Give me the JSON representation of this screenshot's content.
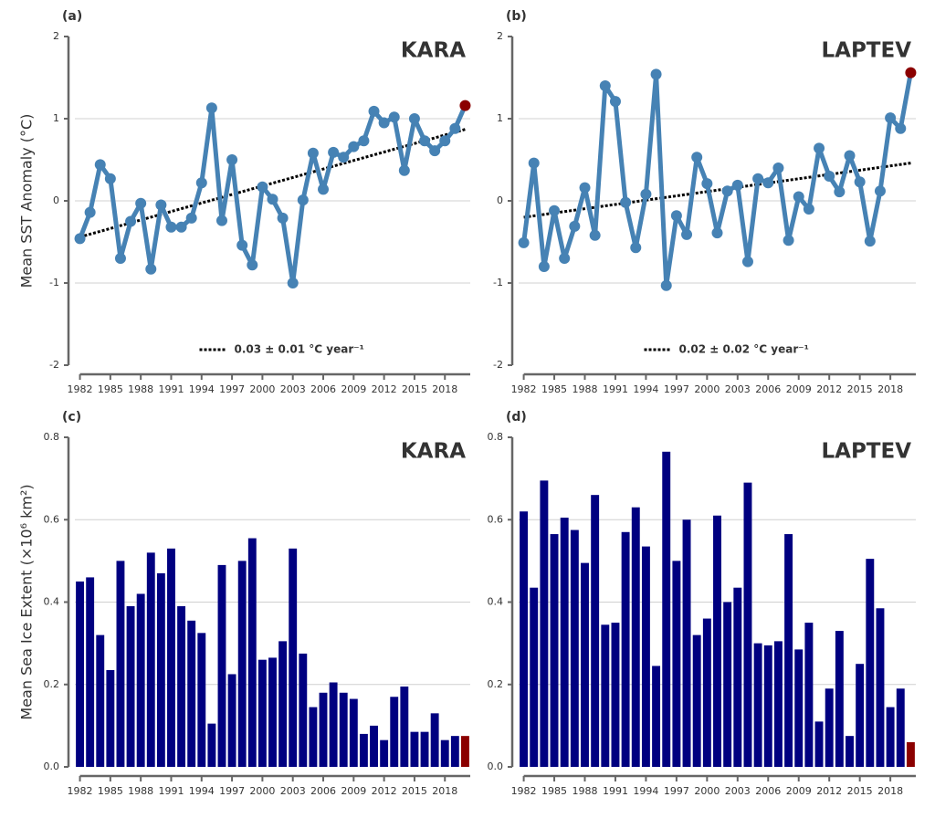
{
  "chart_data": [
    {
      "type": "line",
      "panel_label": "(a)",
      "title": "KARA",
      "y_label": "Mean SST Anomaly (°C)",
      "x": [
        1982,
        1983,
        1984,
        1985,
        1986,
        1987,
        1988,
        1989,
        1990,
        1991,
        1992,
        1993,
        1994,
        1995,
        1996,
        1997,
        1998,
        1999,
        2000,
        2001,
        2002,
        2003,
        2004,
        2005,
        2006,
        2007,
        2008,
        2009,
        2010,
        2011,
        2012,
        2013,
        2014,
        2015,
        2016,
        2017,
        2018,
        2019,
        2020
      ],
      "values": [
        -0.46,
        -0.14,
        0.44,
        0.27,
        -0.7,
        -0.25,
        -0.03,
        -0.83,
        -0.05,
        -0.32,
        -0.32,
        -0.21,
        0.22,
        1.13,
        -0.24,
        0.5,
        -0.54,
        -0.78,
        0.17,
        0.02,
        -0.21,
        -1.0,
        0.01,
        0.58,
        0.14,
        0.59,
        0.53,
        0.66,
        0.73,
        1.09,
        0.95,
        1.02,
        0.37,
        1.0,
        0.73,
        0.61,
        0.73,
        0.88,
        1.16
      ],
      "color": "#4682b4",
      "highlight_color": "#8b0000",
      "trend": {
        "x": [
          1982,
          2020
        ],
        "values": [
          -0.44,
          0.87
        ],
        "label": "0.03 ± 0.01 °C year⁻¹"
      },
      "xlim": [
        1981.5,
        2020.5
      ],
      "xticks": [
        1982,
        1985,
        1988,
        1991,
        1994,
        1997,
        2000,
        2003,
        2006,
        2009,
        2012,
        2015,
        2018
      ],
      "ylim": [
        -2,
        2
      ],
      "yticks": [
        -2,
        -1,
        0,
        1,
        2
      ],
      "grid": true
    },
    {
      "type": "line",
      "panel_label": "(b)",
      "title": "LAPTEV",
      "x": [
        1982,
        1983,
        1984,
        1985,
        1986,
        1987,
        1988,
        1989,
        1990,
        1991,
        1992,
        1993,
        1994,
        1995,
        1996,
        1997,
        1998,
        1999,
        2000,
        2001,
        2002,
        2003,
        2004,
        2005,
        2006,
        2007,
        2008,
        2009,
        2010,
        2011,
        2012,
        2013,
        2014,
        2015,
        2016,
        2017,
        2018,
        2019,
        2020
      ],
      "values": [
        -0.51,
        0.46,
        -0.8,
        -0.12,
        -0.7,
        -0.31,
        0.16,
        -0.42,
        1.4,
        1.21,
        -0.02,
        -0.57,
        0.08,
        1.54,
        -1.03,
        -0.18,
        -0.41,
        0.53,
        0.21,
        -0.39,
        0.12,
        0.19,
        -0.74,
        0.27,
        0.22,
        0.4,
        -0.48,
        0.05,
        -0.1,
        0.64,
        0.3,
        0.11,
        0.55,
        0.23,
        -0.49,
        0.12,
        1.01,
        0.88,
        1.56
      ],
      "color": "#4682b4",
      "highlight_color": "#8b0000",
      "trend": {
        "x": [
          1982,
          2020
        ],
        "values": [
          -0.2,
          0.46
        ],
        "label": "0.02 ± 0.02 °C year⁻¹"
      },
      "xlim": [
        1981.5,
        2020.5
      ],
      "xticks": [
        1982,
        1985,
        1988,
        1991,
        1994,
        1997,
        2000,
        2003,
        2006,
        2009,
        2012,
        2015,
        2018
      ],
      "ylim": [
        -2,
        2
      ],
      "yticks": [
        -2,
        -1,
        0,
        1,
        2
      ],
      "grid": true
    },
    {
      "type": "bar",
      "panel_label": "(c)",
      "title": "KARA",
      "y_label": "Mean Sea Ice Extent (×10⁶ km²)",
      "x": [
        1982,
        1983,
        1984,
        1985,
        1986,
        1987,
        1988,
        1989,
        1990,
        1991,
        1992,
        1993,
        1994,
        1995,
        1996,
        1997,
        1998,
        1999,
        2000,
        2001,
        2002,
        2003,
        2004,
        2005,
        2006,
        2007,
        2008,
        2009,
        2010,
        2011,
        2012,
        2013,
        2014,
        2015,
        2016,
        2017,
        2018,
        2019,
        2020
      ],
      "values": [
        0.45,
        0.46,
        0.32,
        0.235,
        0.5,
        0.39,
        0.42,
        0.52,
        0.47,
        0.53,
        0.39,
        0.355,
        0.325,
        0.105,
        0.49,
        0.225,
        0.5,
        0.555,
        0.26,
        0.265,
        0.305,
        0.53,
        0.275,
        0.145,
        0.18,
        0.205,
        0.18,
        0.165,
        0.08,
        0.1,
        0.065,
        0.17,
        0.195,
        0.085,
        0.085,
        0.13,
        0.065,
        0.075,
        0.075
      ],
      "color": "#000080",
      "highlight_color": "#8b0000",
      "xlim": [
        1981.5,
        2020.5
      ],
      "xticks": [
        1982,
        1985,
        1988,
        1991,
        1994,
        1997,
        2000,
        2003,
        2006,
        2009,
        2012,
        2015,
        2018
      ],
      "ylim": [
        0,
        0.8
      ],
      "yticks": [
        {
          "value": 0,
          "label": "0.0"
        },
        0.2,
        0.4,
        0.6,
        0.8
      ],
      "grid": true
    },
    {
      "type": "bar",
      "panel_label": "(d)",
      "title": "LAPTEV",
      "x": [
        1982,
        1983,
        1984,
        1985,
        1986,
        1987,
        1988,
        1989,
        1990,
        1991,
        1992,
        1993,
        1994,
        1995,
        1996,
        1997,
        1998,
        1999,
        2000,
        2001,
        2002,
        2003,
        2004,
        2005,
        2006,
        2007,
        2008,
        2009,
        2010,
        2011,
        2012,
        2013,
        2014,
        2015,
        2016,
        2017,
        2018,
        2019,
        2020
      ],
      "values": [
        0.62,
        0.435,
        0.695,
        0.565,
        0.605,
        0.575,
        0.495,
        0.66,
        0.345,
        0.35,
        0.57,
        0.63,
        0.535,
        0.245,
        0.765,
        0.5,
        0.6,
        0.32,
        0.36,
        0.61,
        0.4,
        0.435,
        0.69,
        0.3,
        0.295,
        0.305,
        0.565,
        0.285,
        0.35,
        0.11,
        0.19,
        0.33,
        0.075,
        0.25,
        0.505,
        0.385,
        0.145,
        0.19,
        0.06
      ],
      "color": "#000080",
      "highlight_color": "#8b0000",
      "xlim": [
        1981.5,
        2020.5
      ],
      "xticks": [
        1982,
        1985,
        1988,
        1991,
        1994,
        1997,
        2000,
        2003,
        2006,
        2009,
        2012,
        2015,
        2018
      ],
      "ylim": [
        0,
        0.8
      ],
      "yticks": [
        {
          "value": 0,
          "label": "0.0"
        },
        0.2,
        0.4,
        0.6,
        0.8
      ],
      "grid": true
    }
  ]
}
